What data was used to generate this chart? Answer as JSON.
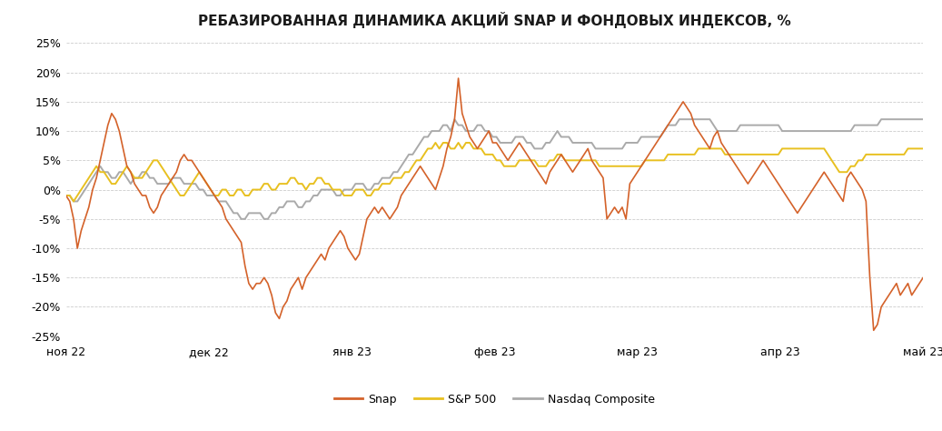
{
  "title": "РЕБАЗИРОВАННАЯ ДИНАМИКА АКЦИЙ SNAP И ФОНДОВЫХ ИНДЕКСОВ, %",
  "snap_color": "#D4622A",
  "sp500_color": "#E8C020",
  "nasdaq_color": "#AAAAAA",
  "background_color": "#FFFFFF",
  "grid_color": "#CCCCCC",
  "ylim": [
    -25,
    25
  ],
  "yticks": [
    -25,
    -20,
    -15,
    -10,
    -5,
    0,
    5,
    10,
    15,
    20,
    25
  ],
  "xtick_labels": [
    "ноя 22",
    "дек 22",
    "янв 23",
    "фев 23",
    "мар 23",
    "апр 23",
    "май 23"
  ],
  "legend_labels": [
    "Snap",
    "S&P 500",
    "Nasdaq Composite"
  ],
  "snap": [
    -1,
    -2,
    -5,
    -10,
    -7,
    -5,
    -3,
    0,
    2,
    5,
    8,
    11,
    13,
    12,
    10,
    7,
    4,
    3,
    1,
    0,
    -1,
    -1,
    -3,
    -4,
    -3,
    -1,
    0,
    1,
    2,
    3,
    5,
    6,
    5,
    5,
    4,
    3,
    2,
    1,
    0,
    -1,
    -2,
    -3,
    -5,
    -6,
    -7,
    -8,
    -9,
    -13,
    -16,
    -17,
    -16,
    -16,
    -15,
    -16,
    -18,
    -21,
    -22,
    -20,
    -19,
    -17,
    -16,
    -15,
    -17,
    -15,
    -14,
    -13,
    -12,
    -11,
    -12,
    -10,
    -9,
    -8,
    -7,
    -8,
    -10,
    -11,
    -12,
    -11,
    -8,
    -5,
    -4,
    -3,
    -4,
    -3,
    -4,
    -5,
    -4,
    -3,
    -1,
    0,
    1,
    2,
    3,
    4,
    3,
    2,
    1,
    0,
    2,
    4,
    7,
    9,
    12,
    19,
    13,
    11,
    9,
    8,
    7,
    8,
    9,
    10,
    8,
    8,
    7,
    6,
    5,
    6,
    7,
    8,
    7,
    6,
    5,
    4,
    3,
    2,
    1,
    3,
    4,
    5,
    6,
    5,
    4,
    3,
    4,
    5,
    6,
    7,
    5,
    4,
    3,
    2,
    -5,
    -4,
    -3,
    -4,
    -3,
    -5,
    1,
    2,
    3,
    4,
    5,
    6,
    7,
    8,
    9,
    10,
    11,
    12,
    13,
    14,
    15,
    14,
    13,
    11,
    10,
    9,
    8,
    7,
    9,
    10,
    8,
    7,
    6,
    5,
    4,
    3,
    2,
    1,
    2,
    3,
    4,
    5,
    4,
    3,
    2,
    1,
    0,
    -1,
    -2,
    -3,
    -4,
    -3,
    -2,
    -1,
    0,
    1,
    2,
    3,
    2,
    1,
    0,
    -1,
    -2,
    2,
    3,
    2,
    1,
    0,
    -2,
    -15,
    -24,
    -23,
    -20,
    -19,
    -18,
    -17,
    -16,
    -18,
    -17,
    -16,
    -18,
    -17,
    -16,
    -15,
    -14,
    -13,
    -14,
    -15,
    -16,
    -17,
    -18,
    -17,
    -16,
    -15,
    -14,
    -13
  ],
  "sp500": [
    -1,
    -1,
    -2,
    -1,
    0,
    1,
    2,
    3,
    4,
    3,
    3,
    2,
    1,
    1,
    2,
    3,
    4,
    3,
    2,
    2,
    2,
    3,
    4,
    5,
    5,
    4,
    3,
    2,
    1,
    0,
    -1,
    -1,
    0,
    1,
    2,
    3,
    2,
    1,
    0,
    -1,
    -1,
    0,
    0,
    -1,
    -1,
    0,
    0,
    -1,
    -1,
    0,
    0,
    0,
    1,
    1,
    0,
    0,
    1,
    1,
    1,
    2,
    2,
    1,
    1,
    0,
    1,
    1,
    2,
    2,
    1,
    1,
    0,
    0,
    0,
    -1,
    -1,
    -1,
    0,
    0,
    0,
    -1,
    -1,
    0,
    0,
    1,
    1,
    1,
    2,
    2,
    2,
    3,
    3,
    4,
    5,
    5,
    6,
    7,
    7,
    8,
    7,
    8,
    8,
    7,
    7,
    8,
    7,
    8,
    8,
    7,
    7,
    7,
    6,
    6,
    6,
    5,
    5,
    4,
    4,
    4,
    4,
    5,
    5,
    5,
    5,
    5,
    4,
    4,
    4,
    5,
    5,
    6,
    6,
    5,
    5,
    5,
    5,
    5,
    5,
    5,
    5,
    5,
    4,
    4,
    4,
    4,
    4,
    4,
    4,
    4,
    4,
    4,
    4,
    4,
    5,
    5,
    5,
    5,
    5,
    5,
    6,
    6,
    6,
    6,
    6,
    6,
    6,
    6,
    7,
    7,
    7,
    7,
    7,
    7,
    7,
    6,
    6,
    6,
    6,
    6,
    6,
    6,
    6,
    6,
    6,
    6,
    6,
    6,
    6,
    6,
    7,
    7,
    7,
    7,
    7,
    7,
    7,
    7,
    7,
    7,
    7,
    7,
    6,
    5,
    4,
    3,
    3,
    3,
    4,
    4,
    5,
    5,
    6,
    6,
    6,
    6,
    6,
    6,
    6,
    6,
    6,
    6,
    6,
    7,
    7,
    7,
    7,
    7,
    7,
    7,
    7,
    7,
    7,
    7,
    7,
    7,
    7
  ],
  "nasdaq": [
    -1,
    -1,
    -2,
    -2,
    -1,
    0,
    1,
    2,
    3,
    4,
    3,
    3,
    2,
    2,
    3,
    3,
    2,
    1,
    2,
    2,
    3,
    3,
    2,
    2,
    1,
    1,
    1,
    1,
    2,
    2,
    2,
    1,
    1,
    1,
    1,
    0,
    0,
    -1,
    -1,
    -1,
    -2,
    -2,
    -2,
    -3,
    -4,
    -4,
    -5,
    -5,
    -4,
    -4,
    -4,
    -4,
    -5,
    -5,
    -4,
    -4,
    -3,
    -3,
    -2,
    -2,
    -2,
    -3,
    -3,
    -2,
    -2,
    -1,
    -1,
    0,
    0,
    0,
    0,
    -1,
    -1,
    0,
    0,
    0,
    1,
    1,
    1,
    0,
    0,
    1,
    1,
    2,
    2,
    2,
    3,
    3,
    4,
    5,
    6,
    6,
    7,
    8,
    9,
    9,
    10,
    10,
    10,
    11,
    11,
    10,
    12,
    11,
    11,
    10,
    10,
    10,
    11,
    11,
    10,
    10,
    9,
    9,
    8,
    8,
    8,
    8,
    9,
    9,
    9,
    8,
    8,
    7,
    7,
    7,
    8,
    8,
    9,
    10,
    9,
    9,
    9,
    8,
    8,
    8,
    8,
    8,
    8,
    7,
    7,
    7,
    7,
    7,
    7,
    7,
    7,
    8,
    8,
    8,
    8,
    9,
    9,
    9,
    9,
    9,
    9,
    10,
    11,
    11,
    11,
    12,
    12,
    12,
    12,
    12,
    12,
    12,
    12,
    12,
    11,
    10,
    10,
    10,
    10,
    10,
    10,
    11,
    11,
    11,
    11,
    11,
    11,
    11,
    11,
    11,
    11,
    11,
    10,
    10,
    10,
    10,
    10,
    10,
    10,
    10,
    10,
    10,
    10,
    10,
    10,
    10,
    10,
    10,
    10,
    10,
    10,
    11,
    11,
    11,
    11,
    11,
    11,
    11,
    12,
    12,
    12,
    12,
    12,
    12,
    12,
    12,
    12,
    12,
    12,
    12
  ]
}
